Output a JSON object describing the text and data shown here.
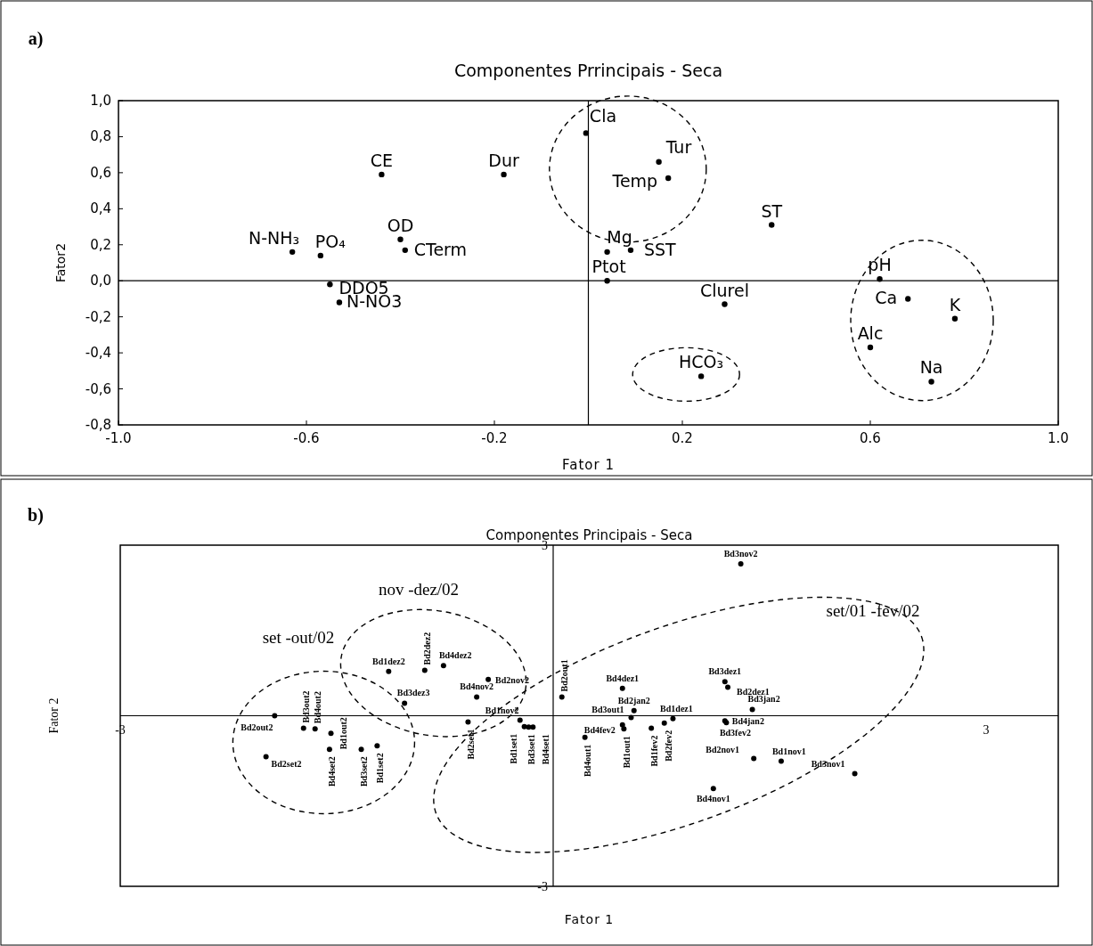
{
  "chart_data": [
    {
      "type": "scatter",
      "title": "Componentes Prrincipais - Seca",
      "xlabel": "Fator 1",
      "ylabel": "Fator2",
      "annotations": [
        "a)"
      ],
      "x": [
        -0.44,
        -0.18,
        -0.63,
        -0.57,
        -0.4,
        -0.39,
        -0.55,
        -0.53,
        -0.005,
        0.15,
        0.17,
        0.39,
        0.04,
        0.09,
        0.04,
        0.29,
        0.24,
        0.62,
        0.68,
        0.78,
        0.6,
        0.73
      ],
      "series": [
        {
          "color": "#000000",
          "values": [
            0.59,
            0.59,
            0.16,
            0.14,
            0.23,
            0.17,
            -0.02,
            -0.12,
            0.82,
            0.66,
            0.57,
            0.31,
            0.16,
            0.17,
            0.0,
            -0.13,
            -0.53,
            0.01,
            -0.1,
            -0.21,
            -0.37,
            -0.56
          ],
          "value_labels": [
            "CE",
            "Dur",
            "N-NH₃",
            "PO₄",
            "OD",
            "CTerm",
            "DDO5",
            "N-NO3",
            "Cla",
            "Tur",
            "Temp",
            "ST",
            "Mg",
            "SST",
            "Ptot",
            "Clurel",
            "HCO₃",
            "pH",
            "Ca",
            "K",
            "Alc",
            "Na"
          ]
        }
      ],
      "xlim": [
        -1.0,
        1.0
      ],
      "xticks": [
        {
          "value": -1.0,
          "label": "-1.0"
        },
        {
          "value": -0.6,
          "label": "-0.6"
        },
        {
          "value": -0.2,
          "label": "-0.2"
        },
        {
          "value": 0.2,
          "label": "0.2"
        },
        {
          "value": 0.6,
          "label": "0.6"
        },
        {
          "value": 1.0,
          "label": "1.0"
        }
      ],
      "ylim": [
        -0.8,
        1.0
      ],
      "yticks": [
        {
          "value": -0.8,
          "label": "-0,8"
        },
        {
          "value": -0.6,
          "label": "-0,6"
        },
        {
          "value": -0.4,
          "label": "-0,4"
        },
        {
          "value": -0.2,
          "label": "-0,2"
        },
        {
          "value": 0,
          "label": "0,0"
        },
        {
          "value": 0.2,
          "label": "0,2"
        },
        {
          "value": 0.4,
          "label": "0,4"
        },
        {
          "value": 0.6,
          "label": "0,6"
        },
        {
          "value": 0.8,
          "label": "0,8"
        },
        {
          "value": 1.0,
          "label": "1,0"
        }
      ],
      "marker": "circle"
    },
    {
      "type": "scatter",
      "title": "Componentes Principais - Seca",
      "xlabel": "Fator 1",
      "ylabel": "Fator 2",
      "annotations": [
        "b)",
        "set -out/02",
        "nov -dez/02",
        "set/01 -fev/02"
      ],
      "x": [
        -1.93,
        -1.73,
        -1.65,
        -1.54,
        -1.99,
        -1.55,
        -1.33,
        -1.22,
        -1.14,
        -0.89,
        -0.76,
        -0.45,
        -1.03,
        -0.53,
        -0.23,
        -0.59,
        -0.2,
        -0.17,
        -0.14,
        1.3,
        0.06,
        0.48,
        0.56,
        0.54,
        0.48,
        0.22,
        0.49,
        0.83,
        0.68,
        0.77,
        1.19,
        1.21,
        1.38,
        1.19,
        1.2,
        1.39,
        1.58,
        2.09,
        1.11
      ],
      "series": [
        {
          "color": "#000000",
          "values": [
            0.0,
            -0.22,
            -0.23,
            -0.31,
            -0.72,
            -0.59,
            -0.59,
            -0.53,
            0.78,
            0.8,
            0.88,
            0.64,
            0.22,
            0.33,
            -0.08,
            -0.11,
            -0.19,
            -0.2,
            -0.2,
            2.67,
            0.33,
            0.48,
            0.09,
            -0.03,
            -0.16,
            -0.38,
            -0.23,
            -0.05,
            -0.22,
            -0.13,
            0.6,
            0.5,
            0.11,
            -0.09,
            -0.12,
            -0.75,
            -0.8,
            -1.02,
            -1.28
          ],
          "value_labels": [
            "Bd2out2",
            "Bd3out2",
            "Bd4out2",
            "Bd1out2",
            "Bd2set2",
            "Bd4set2",
            "Bd3set2",
            "Bd1set2",
            "Bd1dez2",
            "Bd2dez2",
            "Bd4dez2",
            "Bd2nov2",
            "Bd3dez3",
            "Bd4nov2",
            "Bd1nov2",
            "Bd2set1",
            "Bd1set1",
            "Bd3set1",
            "Bd4set1",
            "Bd3nov2",
            "Bd2out1",
            "Bd4dez1",
            "Bd2jan2",
            "Bd3out1",
            "Bd4fev2",
            "Bd4out1",
            "Bd1out1",
            "Bd1dez1",
            "Bd1fev2",
            "Bd2fev2",
            "Bd3dez1",
            "Bd2dez1",
            "Bd3jan2",
            "Bd4jan2",
            "Bd3fev2",
            "Bd2nov1",
            "Bd1nov1",
            "Bd3nov1",
            "Bd4nov1"
          ]
        }
      ],
      "xlim": [
        -3,
        3.5
      ],
      "xticks": [
        -3,
        3
      ],
      "ylim": [
        -3,
        3
      ],
      "yticks": [
        -3,
        3
      ],
      "marker": "circle"
    }
  ]
}
